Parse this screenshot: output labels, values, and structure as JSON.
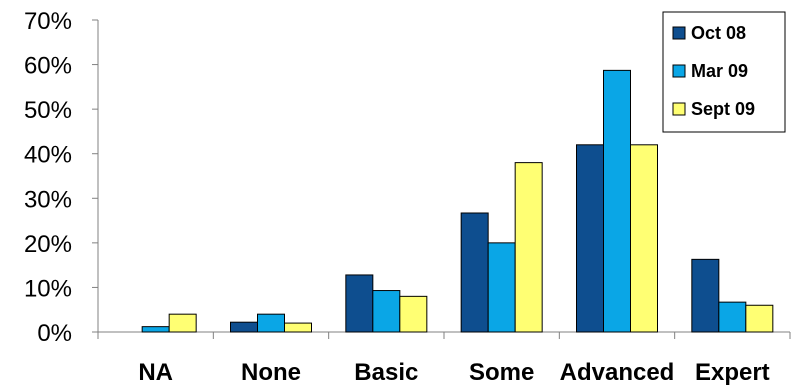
{
  "chart_data": {
    "type": "bar",
    "categories": [
      "NA",
      "None",
      "Basic",
      "Some",
      "Advanced",
      "Expert"
    ],
    "series": [
      {
        "name": "Oct 08",
        "values": [
          0,
          2.2,
          12.8,
          26.7,
          42.0,
          16.3
        ],
        "color": "#0e4e8f"
      },
      {
        "name": "Mar 09",
        "values": [
          1.2,
          4.0,
          9.3,
          20.0,
          58.7,
          6.7
        ],
        "color": "#0aa6e6"
      },
      {
        "name": "Sept 09",
        "values": [
          4.0,
          2.0,
          8.0,
          38.0,
          42.0,
          6.0
        ],
        "color": "#ffff73"
      }
    ],
    "y_ticks": [
      "0%",
      "10%",
      "20%",
      "30%",
      "40%",
      "50%",
      "60%",
      "70%"
    ],
    "ylim": [
      0,
      70
    ],
    "y_unit": "%",
    "grid": false,
    "legend_position": "top-right",
    "title": "",
    "xlabel": "",
    "ylabel": ""
  }
}
